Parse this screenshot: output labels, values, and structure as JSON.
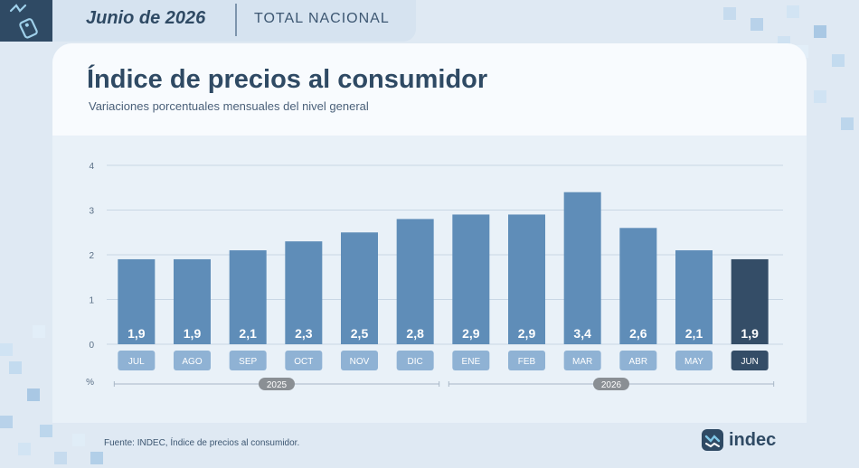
{
  "header": {
    "date": "Junio de 2026",
    "scope": "TOTAL NACIONAL"
  },
  "title": "Índice de precios al consumidor",
  "subtitle": "Variaciones porcentuales mensuales del nivel general",
  "source": "Fuente: INDEC, Índice de precios al consumidor.",
  "brand": "indec",
  "colors": {
    "bar": "#5f8db8",
    "bar_highlight": "#344d67",
    "month_pill": "#8fb2d4",
    "month_pill_highlight": "#344d67",
    "year_pill": "#8a8f94"
  },
  "chart_data": {
    "type": "bar",
    "categories": [
      "JUL",
      "AGO",
      "SEP",
      "OCT",
      "NOV",
      "DIC",
      "ENE",
      "FEB",
      "MAR",
      "ABR",
      "MAY",
      "JUN"
    ],
    "values": [
      1.9,
      1.9,
      2.1,
      2.3,
      2.5,
      2.8,
      2.9,
      2.9,
      3.4,
      2.6,
      2.1,
      1.9
    ],
    "value_labels": [
      "1,9",
      "1,9",
      "2,1",
      "2,3",
      "2,5",
      "2,8",
      "2,9",
      "2,9",
      "3,4",
      "2,6",
      "2,1",
      "1,9"
    ],
    "highlight_index": 11,
    "year_groups": [
      {
        "label": "2025",
        "from": 0,
        "to": 5
      },
      {
        "label": "2026",
        "from": 6,
        "to": 11
      }
    ],
    "ylabel": "%",
    "yticks": [
      "0",
      "1",
      "2",
      "3",
      "4"
    ],
    "ylim": [
      0,
      4
    ],
    "grid": true
  }
}
